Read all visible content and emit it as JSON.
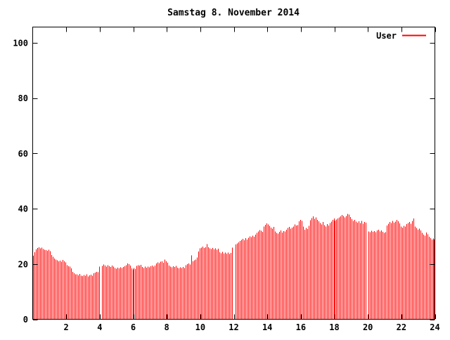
{
  "title": "Samstag 8. November 2014",
  "legend": {
    "label": "User",
    "color": "#ff0000"
  },
  "colors": {
    "bars": "#ff0000",
    "axis": "#000000",
    "background": "#ffffff"
  },
  "chart_data": {
    "type": "bar",
    "title": "Samstag 8. November 2014",
    "xlabel": "",
    "ylabel": "",
    "xlim": [
      0,
      24
    ],
    "ylim": [
      0,
      105.7
    ],
    "x_ticks": [
      2,
      4,
      6,
      8,
      10,
      12,
      14,
      16,
      18,
      20,
      22,
      24
    ],
    "y_ticks": [
      0,
      20,
      40,
      60,
      80,
      100
    ],
    "grid": false,
    "legend_position": "top-right",
    "sample_interval_minutes": 5,
    "gaps_at_hours": [
      4.1,
      12.0,
      20.0
    ],
    "series": [
      {
        "name": "User",
        "color": "#ff0000",
        "values": [
          23.0,
          24.3,
          25.3,
          25.8,
          26.0,
          25.6,
          25.9,
          25.4,
          25.2,
          25.0,
          24.8,
          25.1,
          24.6,
          23.2,
          22.6,
          22.0,
          21.6,
          21.3,
          21.0,
          21.2,
          20.8,
          21.5,
          20.9,
          20.6,
          19.6,
          19.2,
          19.0,
          18.4,
          17.2,
          16.6,
          16.3,
          16.2,
          15.9,
          16.4,
          15.8,
          15.6,
          16.0,
          15.7,
          16.2,
          15.5,
          15.9,
          16.1,
          15.8,
          16.6,
          16.9,
          17.2,
          17.0,
          19.0,
          null,
          19.3,
          19.8,
          19.5,
          19.1,
          19.6,
          19.2,
          18.9,
          19.4,
          19.0,
          18.6,
          18.3,
          18.7,
          18.4,
          18.8,
          18.5,
          18.9,
          19.2,
          19.6,
          20.2,
          19.9,
          19.4,
          18.4,
          18.1,
          18.5,
          18.2,
          19.3,
          19.6,
          19.4,
          19.7,
          18.9,
          18.6,
          19.0,
          18.7,
          19.1,
          18.8,
          19.2,
          19.4,
          19.1,
          19.5,
          20.2,
          20.6,
          20.3,
          20.8,
          21.0,
          20.5,
          21.6,
          20.9,
          20.4,
          19.5,
          19.1,
          18.8,
          19.2,
          18.9,
          19.3,
          18.7,
          18.4,
          18.8,
          18.5,
          18.9,
          18.6,
          19.6,
          19.9,
          20.2,
          19.8,
          23.1,
          20.9,
          21.3,
          21.6,
          22.3,
          24.5,
          25.6,
          25.9,
          26.3,
          25.8,
          26.1,
          27.2,
          26.0,
          25.7,
          25.4,
          25.8,
          25.3,
          25.6,
          25.1,
          25.5,
          24.3,
          23.9,
          24.4,
          23.7,
          24.1,
          23.8,
          24.2,
          23.6,
          24.0,
          25.9,
          null,
          null,
          27.1,
          27.5,
          27.8,
          28.3,
          28.7,
          29.1,
          28.6,
          29.3,
          28.9,
          29.5,
          30.0,
          29.7,
          30.2,
          29.9,
          30.6,
          31.2,
          31.8,
          32.3,
          32.0,
          31.6,
          33.6,
          34.2,
          34.7,
          34.3,
          33.8,
          33.2,
          32.8,
          33.4,
          31.8,
          31.3,
          31.0,
          31.6,
          32.1,
          31.4,
          31.9,
          31.7,
          32.4,
          33.0,
          33.4,
          32.8,
          33.2,
          33.6,
          34.3,
          33.9,
          34.0,
          35.4,
          36.0,
          35.6,
          33.5,
          32.4,
          33.0,
          32.6,
          33.8,
          35.8,
          36.6,
          37.2,
          36.3,
          36.8,
          36.0,
          35.4,
          34.8,
          34.3,
          35.2,
          34.1,
          33.5,
          34.4,
          33.9,
          34.8,
          35.3,
          35.9,
          36.4,
          35.7,
          36.1,
          36.4,
          36.8,
          37.2,
          37.7,
          37.3,
          36.9,
          37.4,
          38.1,
          37.8,
          37.0,
          36.2,
          35.6,
          36.0,
          35.3,
          34.9,
          35.4,
          34.8,
          35.6,
          34.6,
          35.2,
          35.0,
          null,
          31.8,
          31.5,
          32.0,
          31.6,
          31.9,
          31.5,
          32.2,
          32.4,
          31.8,
          32.1,
          31.6,
          31.2,
          31.5,
          33.9,
          34.6,
          35.2,
          34.8,
          35.6,
          34.9,
          35.3,
          36.0,
          35.5,
          34.7,
          33.6,
          33.2,
          33.8,
          33.5,
          34.4,
          34.8,
          35.2,
          34.5,
          35.6,
          36.4,
          33.6,
          33.0,
          32.4,
          32.8,
          32.1,
          31.2,
          30.6,
          30.2,
          31.4,
          30.8,
          29.9,
          29.4,
          28.8,
          29.2,
          28.9
        ]
      }
    ]
  }
}
